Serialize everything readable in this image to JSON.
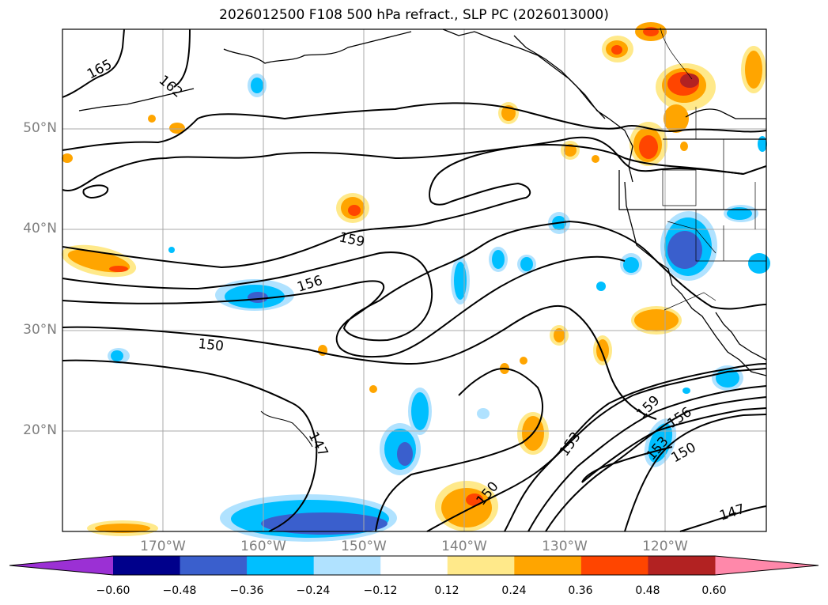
{
  "title": "2026012500 F108 500 hPa refract., SLP PC (2026013000)",
  "lat_labels": [
    "50°N",
    "40°N",
    "30°N",
    "20°N"
  ],
  "lon_labels": [
    "170°W",
    "160°W",
    "150°W",
    "140°W",
    "130°W",
    "120°W"
  ],
  "contour_labels": [
    "165",
    "162",
    "159",
    "156",
    "150",
    "147",
    "153",
    "159",
    "156",
    "153",
    "150",
    "147",
    "150"
  ],
  "colorbar": {
    "ticks": [
      "−0.60",
      "−0.48",
      "−0.36",
      "−0.24",
      "−0.12",
      "0.12",
      "0.24",
      "0.36",
      "0.48",
      "0.60"
    ],
    "colors": [
      "#9b30d4",
      "#00008b",
      "#3a5fcd",
      "#00bfff",
      "#b0e2ff",
      "#ffffff",
      "#ffe98a",
      "#ffa500",
      "#ff4500",
      "#b22222",
      "#ff88aa"
    ]
  }
}
